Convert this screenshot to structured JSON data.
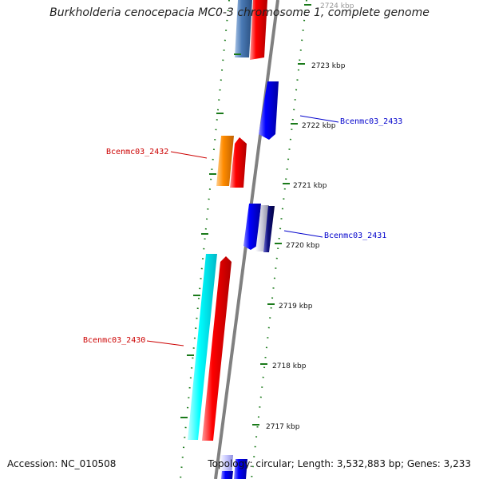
{
  "title": "Burkholderia cenocepacia MC0-3 chromosome 1, complete genome",
  "accession_text": "Accession: NC_010508",
  "topology_text": "Topology: circular; Length: 3,532,883 bp; Genes: 3,233",
  "ticks": [
    {
      "label": "2724 kbp"
    },
    {
      "label": "2723 kbp"
    },
    {
      "label": "2722 kbp"
    },
    {
      "label": "2721 kbp"
    },
    {
      "label": "2720 kbp"
    },
    {
      "label": "2719 kbp"
    },
    {
      "label": "2718 kbp"
    },
    {
      "label": "2717 kbp"
    }
  ],
  "genes": [
    {
      "name": "Bcenmc03_2433",
      "label_color": "#0000cc"
    },
    {
      "name": "Bcenmc03_2432",
      "label_color": "#cc0000"
    },
    {
      "name": "Bcenmc03_2431",
      "label_color": "#0000cc"
    },
    {
      "name": "Bcenmc03_2430",
      "label_color": "#cc0000"
    }
  ],
  "colors": {
    "backbone": "#808080",
    "tick": "#1a7a1a",
    "forward_cds": "#ff0000",
    "reverse_cds": "#0000ff",
    "orange_feature": "#ff8c00",
    "cyan_feature": "#00ffff",
    "steelblue_feature": "#4a7ab5"
  }
}
